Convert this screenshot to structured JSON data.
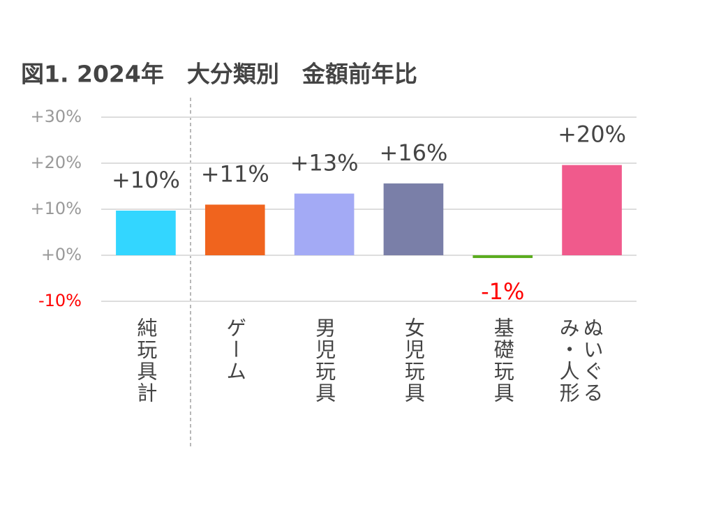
{
  "chart_data": {
    "type": "bar",
    "title": "図1. 2024年　大分類別　金額前年比",
    "categories": [
      "純玩具計",
      "ゲーム",
      "男児玩具",
      "女児玩具",
      "基礎玩具",
      "ぬいぐるみ・人形"
    ],
    "values": [
      9.7,
      11.0,
      13.4,
      15.6,
      -0.6,
      19.6
    ],
    "value_labels": [
      "+10%",
      "+11%",
      "+13%",
      "+16%",
      "-1%",
      "+20%"
    ],
    "colors": [
      "#33d6ff",
      "#f0641e",
      "#a3aaf5",
      "#7a7fa8",
      "#5aac1e",
      "#f05a8c"
    ],
    "ylim": [
      -10,
      30
    ],
    "yticks": [
      {
        "value": -10,
        "label": "-10%"
      },
      {
        "value": 0,
        "label": "+0%"
      },
      {
        "value": 10,
        "label": "+10%"
      },
      {
        "value": 20,
        "label": "+20%"
      },
      {
        "value": 30,
        "label": "+30%"
      }
    ],
    "grid": true
  }
}
